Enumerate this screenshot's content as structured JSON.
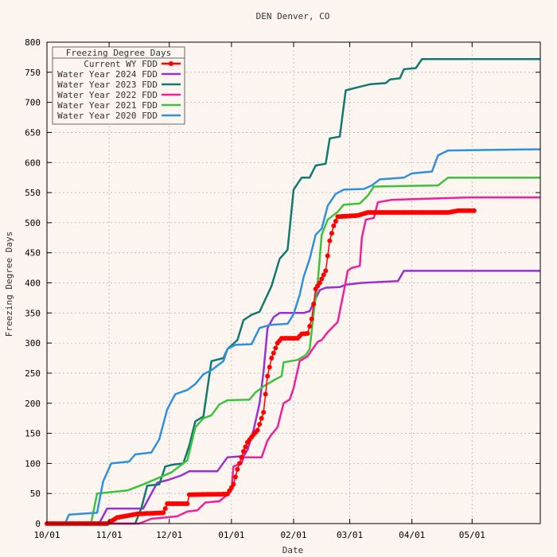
{
  "chart_data": {
    "type": "line",
    "title": "DEN Denver, CO",
    "xlabel": "Date",
    "ylabel": "Freezing Degree Days",
    "ylim": [
      0,
      800
    ],
    "yticks": [
      0,
      50,
      100,
      150,
      200,
      250,
      300,
      350,
      400,
      450,
      500,
      550,
      600,
      650,
      700,
      750,
      800
    ],
    "xlim": [
      0,
      246
    ],
    "xticks": [
      {
        "day": 0,
        "label": "10/01"
      },
      {
        "day": 31,
        "label": "11/01"
      },
      {
        "day": 61,
        "label": "12/01"
      },
      {
        "day": 92,
        "label": "01/01"
      },
      {
        "day": 123,
        "label": "02/01"
      },
      {
        "day": 151,
        "label": "03/01"
      },
      {
        "day": 182,
        "label": "04/01"
      },
      {
        "day": 212,
        "label": "05/01"
      }
    ],
    "grid": true,
    "legend_title": "Freezing Degree Days",
    "legend_position": "top-left",
    "series": [
      {
        "name": "Current WY FDD",
        "color": "#ff0000",
        "markers": true,
        "step": true,
        "points": [
          [
            0,
            0
          ],
          [
            30,
            0
          ],
          [
            35,
            10
          ],
          [
            45,
            16
          ],
          [
            58,
            18
          ],
          [
            59,
            25
          ],
          [
            60,
            33
          ],
          [
            70,
            33
          ],
          [
            71,
            48
          ],
          [
            90,
            49
          ],
          [
            93,
            65
          ],
          [
            95,
            90
          ],
          [
            98,
            120
          ],
          [
            100,
            135
          ],
          [
            103,
            148
          ],
          [
            105,
            155
          ],
          [
            108,
            185
          ],
          [
            110,
            245
          ],
          [
            112,
            275
          ],
          [
            115,
            300
          ],
          [
            117,
            308
          ],
          [
            125,
            308
          ],
          [
            127,
            315
          ],
          [
            130,
            316
          ],
          [
            132,
            340
          ],
          [
            134,
            390
          ],
          [
            136,
            400
          ],
          [
            139,
            420
          ],
          [
            141,
            470
          ],
          [
            143,
            495
          ],
          [
            145,
            510
          ],
          [
            155,
            512
          ],
          [
            160,
            517
          ],
          [
            200,
            517
          ],
          [
            205,
            520
          ],
          [
            213,
            520
          ]
        ]
      },
      {
        "name": "Water Year 2024 FDD",
        "color": "#9b30d0",
        "markers": false,
        "step": true,
        "points": [
          [
            0,
            0
          ],
          [
            26,
            0
          ],
          [
            30,
            25
          ],
          [
            48,
            25
          ],
          [
            55,
            68
          ],
          [
            60,
            72
          ],
          [
            67,
            80
          ],
          [
            71,
            87
          ],
          [
            85,
            87
          ],
          [
            90,
            110
          ],
          [
            98,
            112
          ],
          [
            100,
            122
          ],
          [
            103,
            155
          ],
          [
            106,
            200
          ],
          [
            108,
            252
          ],
          [
            110,
            325
          ],
          [
            113,
            343
          ],
          [
            116,
            350
          ],
          [
            128,
            350
          ],
          [
            131,
            353
          ],
          [
            136,
            388
          ],
          [
            139,
            392
          ],
          [
            146,
            393
          ],
          [
            149,
            397
          ],
          [
            157,
            400
          ],
          [
            175,
            403
          ],
          [
            178,
            420
          ],
          [
            246,
            420
          ]
        ]
      },
      {
        "name": "Water Year 2023 FDD",
        "color": "#107a70",
        "markers": false,
        "step": true,
        "points": [
          [
            0,
            0
          ],
          [
            44,
            0
          ],
          [
            47,
            25
          ],
          [
            50,
            63
          ],
          [
            56,
            65
          ],
          [
            59,
            95
          ],
          [
            63,
            98
          ],
          [
            68,
            100
          ],
          [
            71,
            130
          ],
          [
            74,
            170
          ],
          [
            78,
            178
          ],
          [
            82,
            270
          ],
          [
            88,
            275
          ],
          [
            90,
            290
          ],
          [
            95,
            305
          ],
          [
            98,
            338
          ],
          [
            102,
            347
          ],
          [
            106,
            352
          ],
          [
            112,
            395
          ],
          [
            116,
            440
          ],
          [
            120,
            455
          ],
          [
            123,
            555
          ],
          [
            127,
            575
          ],
          [
            131,
            575
          ],
          [
            134,
            595
          ],
          [
            139,
            598
          ],
          [
            141,
            640
          ],
          [
            146,
            643
          ],
          [
            149,
            720
          ],
          [
            155,
            725
          ],
          [
            161,
            730
          ],
          [
            169,
            732
          ],
          [
            171,
            738
          ],
          [
            176,
            740
          ],
          [
            178,
            755
          ],
          [
            184,
            757
          ],
          [
            187,
            772
          ],
          [
            246,
            772
          ]
        ]
      },
      {
        "name": "Water Year 2022 FDD",
        "color": "#f0209a",
        "markers": false,
        "step": true,
        "points": [
          [
            0,
            0
          ],
          [
            46,
            0
          ],
          [
            52,
            8
          ],
          [
            65,
            12
          ],
          [
            70,
            20
          ],
          [
            75,
            22
          ],
          [
            79,
            35
          ],
          [
            86,
            37
          ],
          [
            90,
            48
          ],
          [
            92,
            55
          ],
          [
            93,
            95
          ],
          [
            97,
            100
          ],
          [
            98,
            110
          ],
          [
            107,
            110
          ],
          [
            110,
            138
          ],
          [
            112,
            148
          ],
          [
            115,
            160
          ],
          [
            118,
            200
          ],
          [
            121,
            206
          ],
          [
            123,
            225
          ],
          [
            126,
            270
          ],
          [
            130,
            278
          ],
          [
            135,
            302
          ],
          [
            137,
            305
          ],
          [
            140,
            318
          ],
          [
            145,
            335
          ],
          [
            148,
            385
          ],
          [
            150,
            420
          ],
          [
            152,
            425
          ],
          [
            156,
            428
          ],
          [
            157,
            475
          ],
          [
            159,
            505
          ],
          [
            163,
            508
          ],
          [
            165,
            534
          ],
          [
            172,
            538
          ],
          [
            210,
            542
          ],
          [
            246,
            542
          ]
        ]
      },
      {
        "name": "Water Year 2021 FDD",
        "color": "#3cc23c",
        "markers": false,
        "step": true,
        "points": [
          [
            0,
            0
          ],
          [
            22,
            0
          ],
          [
            25,
            50
          ],
          [
            40,
            55
          ],
          [
            48,
            65
          ],
          [
            55,
            75
          ],
          [
            62,
            85
          ],
          [
            70,
            105
          ],
          [
            74,
            160
          ],
          [
            78,
            175
          ],
          [
            82,
            180
          ],
          [
            86,
            198
          ],
          [
            90,
            205
          ],
          [
            101,
            206
          ],
          [
            104,
            218
          ],
          [
            108,
            228
          ],
          [
            113,
            238
          ],
          [
            117,
            245
          ],
          [
            118,
            268
          ],
          [
            125,
            272
          ],
          [
            129,
            280
          ],
          [
            131,
            290
          ],
          [
            133,
            350
          ],
          [
            135,
            400
          ],
          [
            137,
            480
          ],
          [
            140,
            505
          ],
          [
            145,
            518
          ],
          [
            148,
            530
          ],
          [
            156,
            532
          ],
          [
            160,
            545
          ],
          [
            163,
            560
          ],
          [
            195,
            562
          ],
          [
            200,
            575
          ],
          [
            246,
            575
          ]
        ]
      },
      {
        "name": "Water Year 2020 FDD",
        "color": "#3090e0",
        "markers": false,
        "step": true,
        "points": [
          [
            0,
            0
          ],
          [
            9,
            0
          ],
          [
            11,
            15
          ],
          [
            25,
            18
          ],
          [
            28,
            70
          ],
          [
            32,
            100
          ],
          [
            41,
            103
          ],
          [
            44,
            115
          ],
          [
            52,
            118
          ],
          [
            56,
            140
          ],
          [
            60,
            190
          ],
          [
            64,
            215
          ],
          [
            70,
            222
          ],
          [
            74,
            232
          ],
          [
            78,
            248
          ],
          [
            82,
            255
          ],
          [
            88,
            270
          ],
          [
            90,
            290
          ],
          [
            94,
            297
          ],
          [
            102,
            298
          ],
          [
            106,
            325
          ],
          [
            111,
            330
          ],
          [
            120,
            332
          ],
          [
            123,
            348
          ],
          [
            126,
            380
          ],
          [
            128,
            410
          ],
          [
            131,
            440
          ],
          [
            134,
            480
          ],
          [
            137,
            490
          ],
          [
            140,
            528
          ],
          [
            144,
            548
          ],
          [
            148,
            555
          ],
          [
            158,
            556
          ],
          [
            162,
            562
          ],
          [
            166,
            572
          ],
          [
            178,
            575
          ],
          [
            182,
            582
          ],
          [
            192,
            585
          ],
          [
            195,
            612
          ],
          [
            200,
            620
          ],
          [
            246,
            622
          ]
        ]
      }
    ]
  }
}
